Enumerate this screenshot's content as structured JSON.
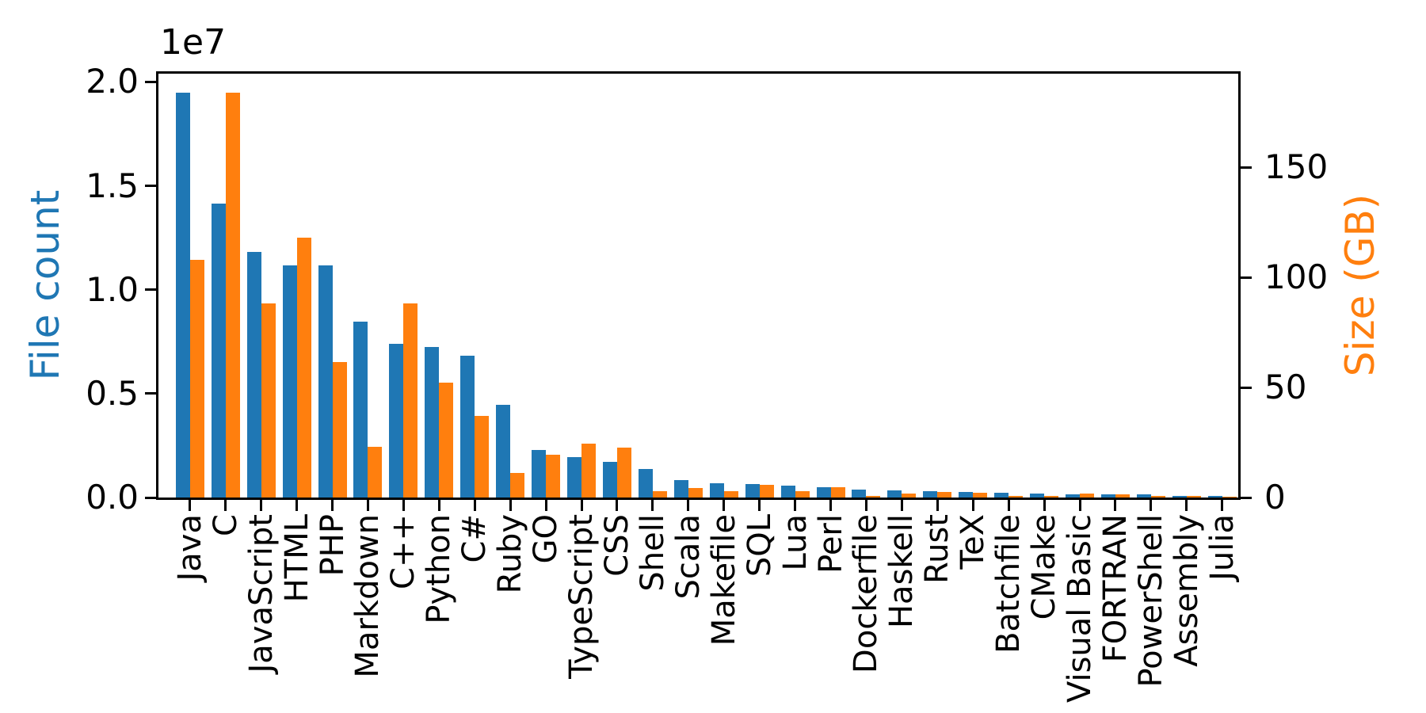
{
  "chart_data": {
    "type": "bar",
    "title": "",
    "grid": false,
    "legend": "none",
    "categories": [
      "Java",
      "C",
      "JavaScript",
      "HTML",
      "PHP",
      "Markdown",
      "C++",
      "Python",
      "C#",
      "Ruby",
      "GO",
      "TypeScript",
      "CSS",
      "Shell",
      "Scala",
      "Makefile",
      "SQL",
      "Lua",
      "Perl",
      "Dockerfile",
      "Haskell",
      "Rust",
      "TeX",
      "Batchfile",
      "CMake",
      "Visual Basic",
      "FORTRAN",
      "PowerShell",
      "Assembly",
      "Julia"
    ],
    "series": [
      {
        "name": "File count",
        "axis": "left",
        "color": "#1f77b4",
        "values": [
          19500000,
          14150000,
          11840000,
          11180000,
          11170000,
          8460000,
          7380000,
          7230000,
          6810000,
          4470000,
          2270000,
          1940000,
          1730000,
          1390000,
          840000,
          680000,
          660000,
          580000,
          500000,
          370000,
          340000,
          320000,
          250000,
          240000,
          180000,
          160000,
          140000,
          140000,
          80000,
          60000
        ]
      },
      {
        "name": "Size (GB)",
        "axis": "right",
        "color": "#ff7f0e",
        "values": [
          108,
          184,
          88,
          118,
          61.5,
          23,
          88,
          52,
          37,
          11,
          19.3,
          24.6,
          22.7,
          3,
          4.4,
          2.9,
          5.7,
          2.8,
          4.7,
          0.7,
          1.85,
          2.7,
          2.15,
          0.7,
          0.55,
          1.9,
          1.6,
          0.7,
          0.8,
          0.3
        ]
      }
    ],
    "left_axis": {
      "label": "File count",
      "offset_text": "1e7",
      "color": "#1f77b4",
      "tick_values": [
        0,
        5000000,
        10000000,
        15000000,
        20000000
      ],
      "tick_labels": [
        "0.0",
        "0.5",
        "1.0",
        "1.5",
        "2.0"
      ],
      "range": [
        0,
        20400000
      ]
    },
    "right_axis": {
      "label": "Size (GB)",
      "color": "#ff7f0e",
      "tick_values": [
        0,
        50,
        100,
        150
      ],
      "tick_labels": [
        "0",
        "50",
        "100",
        "150"
      ],
      "range": [
        0,
        192.5
      ]
    }
  }
}
